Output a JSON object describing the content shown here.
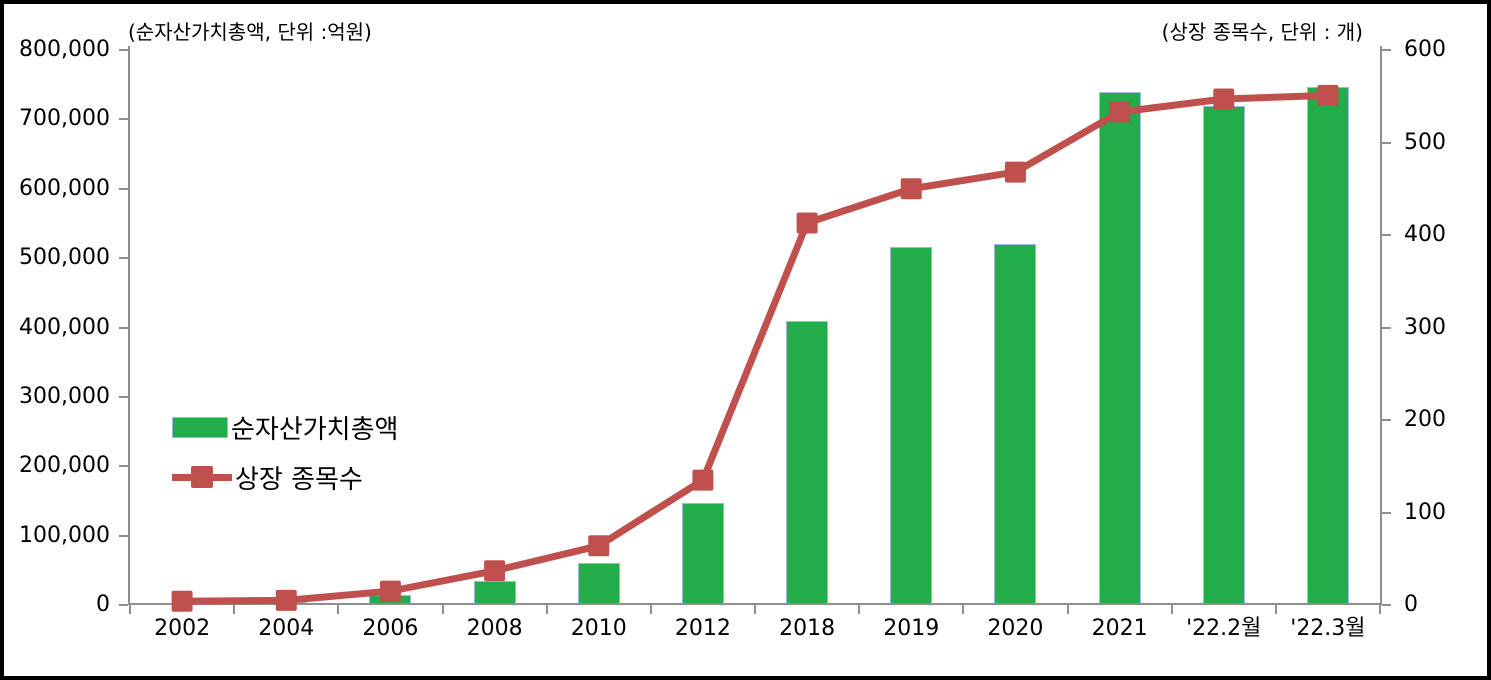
{
  "chart_data": {
    "type": "combo-bar-line",
    "title": "",
    "left_axis": {
      "title": "(순자산가치총액, 단위 :억원)",
      "min": 0,
      "max": 800000,
      "step": 100000,
      "tick_labels": [
        "0",
        "100,000",
        "200,000",
        "300,000",
        "400,000",
        "500,000",
        "600,000",
        "700,000",
        "800,000"
      ],
      "unit": "억원"
    },
    "right_axis": {
      "title": "(상장 종목수, 단위 : 개)",
      "min": 0,
      "max": 600,
      "step": 100,
      "tick_labels": [
        "0",
        "100",
        "200",
        "300",
        "400",
        "500",
        "600"
      ],
      "unit": "개"
    },
    "categories": [
      "2002",
      "2004",
      "2006",
      "2008",
      "2010",
      "2012",
      "2018",
      "2019",
      "2020",
      "2021",
      "'22.2월",
      "'22.3월"
    ],
    "series": [
      {
        "name": "순자산가치총액",
        "type": "bar",
        "axis": "left",
        "color": "#22AC4A",
        "border_color": "#9FB9DA",
        "values": [
          3500,
          4000,
          14000,
          34000,
          60000,
          147000,
          410000,
          516000,
          520000,
          739000,
          719000,
          746000
        ]
      },
      {
        "name": "상장 종목수",
        "type": "line",
        "axis": "right",
        "color": "#C0504D",
        "marker": "square",
        "values": [
          4,
          5,
          15,
          37,
          64,
          135,
          413,
          450,
          468,
          533,
          547,
          551
        ]
      }
    ],
    "legend": {
      "position": "inside-left",
      "items": [
        "순자산가치총액",
        "상장 종목수"
      ]
    },
    "grid": false,
    "background": "#FFFFFF",
    "frame_color": "#000000",
    "axis_color": "#8E8E8E"
  }
}
